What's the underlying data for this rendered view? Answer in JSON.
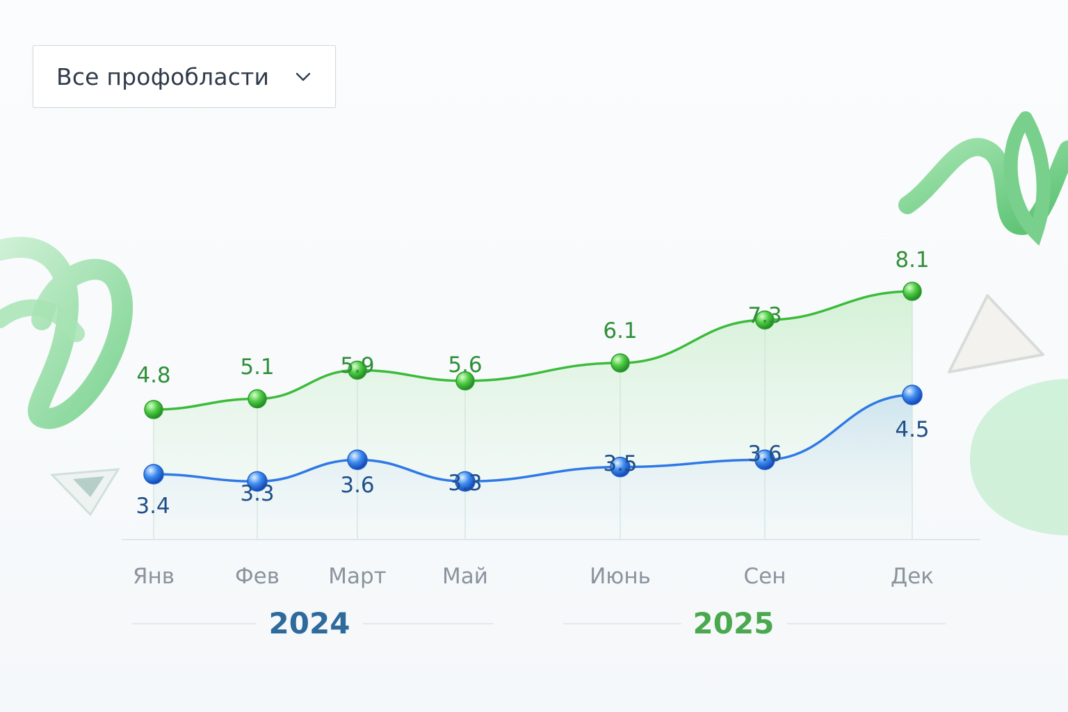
{
  "filter": {
    "selected": "Все профобласти",
    "icon": "chevron-down-icon"
  },
  "colors": {
    "green": "#3bbb3b",
    "blue": "#2f79e6",
    "green_label": "#2f8f39",
    "blue_label": "#1f4f88",
    "axis_label": "#8a939e",
    "year_2024": "#2e6a9c",
    "year_2025": "#4aa84e"
  },
  "chart_data": {
    "type": "line",
    "categories": [
      "Янв",
      "Фев",
      "Март",
      "Май",
      "Июнь",
      "Сен",
      "Дек"
    ],
    "series": [
      {
        "values": [
          4.8,
          5.1,
          5.9,
          5.6,
          6.1,
          7.3,
          8.1
        ]
      },
      {
        "values": [
          3.4,
          3.3,
          3.6,
          3.3,
          3.5,
          3.6,
          4.5
        ]
      }
    ],
    "year_labels": [
      "2024",
      "2025"
    ],
    "grid": false,
    "legend": "none"
  }
}
